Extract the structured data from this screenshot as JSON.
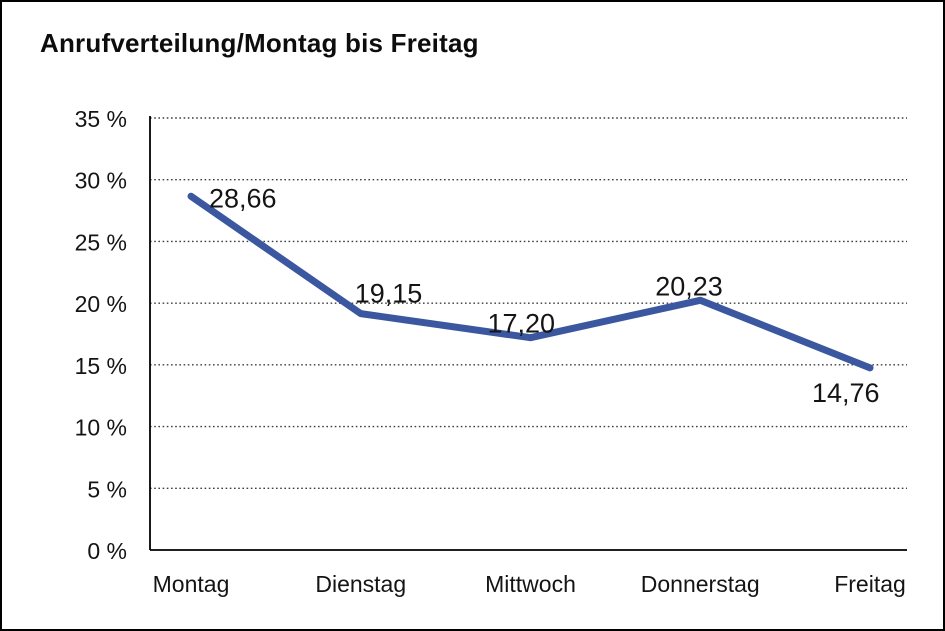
{
  "chart_data": {
    "type": "line",
    "title": "Anrufverteilung/Montag bis Freitag",
    "categories": [
      "Montag",
      "Dienstag",
      "Mittwoch",
      "Donnerstag",
      "Freitag"
    ],
    "series": [
      {
        "name": "Anrufverteilung",
        "values": [
          28.66,
          19.15,
          17.2,
          20.23,
          14.76
        ],
        "value_labels": [
          "28,66",
          "19,15",
          "17,20",
          "20,23",
          "14,76"
        ]
      }
    ],
    "xlabel": "",
    "ylabel": "",
    "ylim": [
      0,
      35
    ],
    "yticks": [
      0,
      5,
      10,
      15,
      20,
      25,
      30,
      35
    ],
    "ytick_labels": [
      "0 %",
      "5 %",
      "10 %",
      "15 %",
      "20 %",
      "25 %",
      "30 %",
      "35 %"
    ],
    "grid": "horizontal-dotted",
    "legend": "none",
    "colors": {
      "line": "#3A57A0",
      "axis": "#000000",
      "gridline": "#3c3c3c",
      "text": "#141414",
      "background": "#ffffff"
    }
  }
}
